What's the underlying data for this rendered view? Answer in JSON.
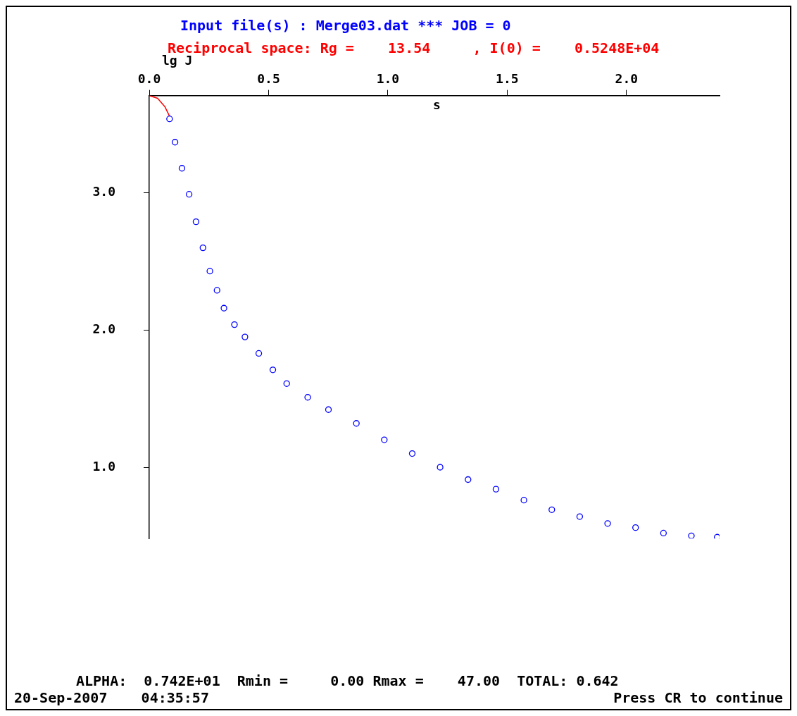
{
  "chart_data": {
    "type": "scatter",
    "title": "Input file(s) : Merge03.dat *** JOB = 0",
    "subtitle": "Reciprocal space: Rg =    13.54     , I(0) =    0.5248E+04",
    "xlabel": "s",
    "ylabel": "lg J",
    "annotations": [
      "ALPHA:  0.742E+01  Rmin =     0.00 Rmax =    47.00  TOTAL: 0.642",
      "20-Sep-2007    04:35:57",
      "Press CR to continue"
    ],
    "xlim": [
      0,
      2.39
    ],
    "xticks": [
      {
        "value": 0,
        "label": "0.0"
      },
      {
        "value": 0.5,
        "label": "0.5"
      },
      {
        "value": 1,
        "label": "1.0"
      },
      {
        "value": 1.5,
        "label": "1.5"
      },
      {
        "value": 2,
        "label": "2.0"
      }
    ],
    "ylim": [
      0.48,
      3.71
    ],
    "yticks": [
      {
        "value": 1,
        "label": "1.0"
      },
      {
        "value": 2,
        "label": "2.0"
      },
      {
        "value": 3,
        "label": "3.0"
      }
    ],
    "grid": false,
    "legend": false,
    "marker": "circle",
    "series": [
      {
        "color": "#0000ff",
        "x": [
          0.085,
          0.108,
          0.137,
          0.167,
          0.196,
          0.225,
          0.254,
          0.284,
          0.313,
          0.357,
          0.401,
          0.459,
          0.518,
          0.576,
          0.664,
          0.751,
          0.868,
          0.985,
          1.102,
          1.219,
          1.336,
          1.453,
          1.57,
          1.687,
          1.804,
          1.921,
          2.038,
          2.155,
          2.272,
          2.38
        ],
        "values": [
          3.54,
          3.37,
          3.18,
          2.99,
          2.79,
          2.6,
          2.43,
          2.29,
          2.16,
          2.04,
          1.95,
          1.83,
          1.71,
          1.61,
          1.51,
          1.42,
          1.32,
          1.2,
          1.1,
          1.0,
          0.91,
          0.84,
          0.76,
          0.69,
          0.64,
          0.59,
          0.56,
          0.52,
          0.5,
          0.49
        ]
      },
      {
        "type": "line",
        "color": "#ff0000",
        "marker": "none",
        "x": [
          0,
          0.035,
          0.065,
          0.085
        ],
        "values": [
          3.71,
          3.69,
          3.63,
          3.56
        ]
      }
    ]
  }
}
